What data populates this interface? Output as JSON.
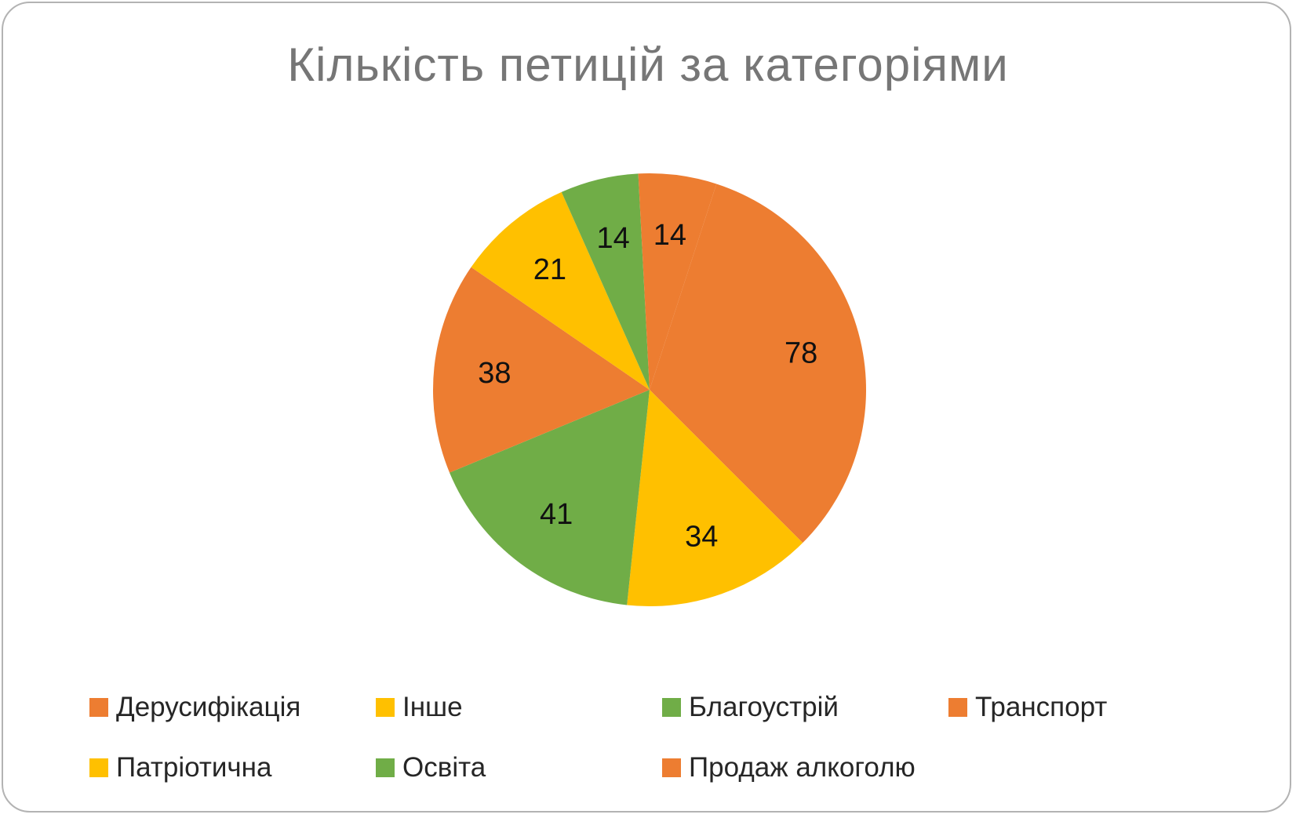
{
  "chart_data": {
    "type": "pie",
    "title": "Кількість петицій за категоріями",
    "slices": [
      {
        "label": "Дерусифікація",
        "value": 78,
        "color": "#ED7D31"
      },
      {
        "label": "Інше",
        "value": 34,
        "color": "#FFC000"
      },
      {
        "label": "Благоустрій",
        "value": 41,
        "color": "#70AD47"
      },
      {
        "label": "Транспорт",
        "value": 38,
        "color": "#ED7D31"
      },
      {
        "label": "Патріотична",
        "value": 21,
        "color": "#FFC000"
      },
      {
        "label": "Освіта",
        "value": 14,
        "color": "#70AD47"
      },
      {
        "label": "Продаж алкоголю",
        "value": 14,
        "color": "#ED7D31"
      }
    ],
    "data_labels": true,
    "legend_position": "bottom"
  }
}
